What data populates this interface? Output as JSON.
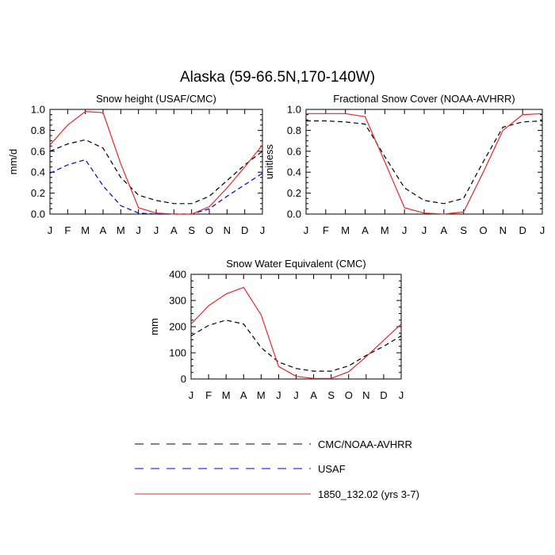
{
  "title": "Alaska (59-66.5N,170-140W)",
  "legend": {
    "entries": [
      {
        "label": "CMC/NOAA-AVHRR",
        "color": "#000000",
        "dash": "dashed"
      },
      {
        "label": "USAF",
        "color": "#0000cc",
        "dash": "dashed"
      },
      {
        "label": "1850_132.02 (yrs 3-7)",
        "color": "#e8262b",
        "dash": "solid"
      }
    ]
  },
  "colors": {
    "obs": "#000000",
    "usaf": "#0000cc",
    "model": "#e8262b"
  },
  "chart_data": [
    {
      "type": "line",
      "title": "Snow height (USAF/CMC)",
      "xlabel": "",
      "ylabel": "mm/d",
      "categories": [
        "J",
        "F",
        "M",
        "A",
        "M",
        "J",
        "J",
        "A",
        "S",
        "O",
        "N",
        "D",
        "J"
      ],
      "ylim": [
        0,
        1.0
      ],
      "yticks": [
        "0.0",
        "0.2",
        "0.4",
        "0.6",
        "0.8",
        "1.0"
      ],
      "series": [
        {
          "key": "obs",
          "values": [
            0.6,
            0.67,
            0.71,
            0.63,
            0.35,
            0.18,
            0.13,
            0.1,
            0.1,
            0.17,
            0.32,
            0.47,
            0.6
          ]
        },
        {
          "key": "usaf",
          "values": [
            0.39,
            0.47,
            0.52,
            0.27,
            0.08,
            0.01,
            0.0,
            0.0,
            0.0,
            0.05,
            0.17,
            0.28,
            0.39
          ]
        },
        {
          "key": "model",
          "values": [
            0.66,
            0.85,
            0.98,
            0.97,
            0.48,
            0.06,
            0.01,
            0.0,
            0.0,
            0.07,
            0.25,
            0.45,
            0.66
          ]
        }
      ]
    },
    {
      "type": "line",
      "title": "Fractional Snow Cover (NOAA-AVHRR)",
      "xlabel": "",
      "ylabel": "unitless",
      "categories": [
        "J",
        "F",
        "M",
        "A",
        "M",
        "J",
        "J",
        "A",
        "S",
        "O",
        "N",
        "D",
        "J"
      ],
      "ylim": [
        0,
        1.0
      ],
      "yticks": [
        "0.0",
        "0.2",
        "0.4",
        "0.6",
        "0.8",
        "1.0"
      ],
      "series": [
        {
          "key": "obs",
          "values": [
            0.89,
            0.89,
            0.88,
            0.86,
            0.55,
            0.25,
            0.13,
            0.1,
            0.15,
            0.5,
            0.83,
            0.88,
            0.89
          ]
        },
        {
          "key": "model",
          "values": [
            0.96,
            0.96,
            0.96,
            0.93,
            0.5,
            0.06,
            0.01,
            0.0,
            0.02,
            0.4,
            0.8,
            0.95,
            0.96
          ]
        }
      ]
    },
    {
      "type": "line",
      "title": "Snow Water Equivalent (CMC)",
      "xlabel": "",
      "ylabel": "mm",
      "categories": [
        "J",
        "F",
        "M",
        "A",
        "M",
        "J",
        "J",
        "A",
        "S",
        "O",
        "N",
        "D",
        "J"
      ],
      "ylim": [
        0,
        400
      ],
      "yticks": [
        "0",
        "100",
        "200",
        "300",
        "400"
      ],
      "series": [
        {
          "key": "obs",
          "values": [
            165,
            205,
            225,
            210,
            120,
            65,
            40,
            30,
            30,
            50,
            90,
            125,
            165
          ]
        },
        {
          "key": "model",
          "values": [
            210,
            280,
            325,
            350,
            245,
            48,
            10,
            2,
            2,
            28,
            85,
            148,
            210
          ]
        }
      ]
    }
  ]
}
